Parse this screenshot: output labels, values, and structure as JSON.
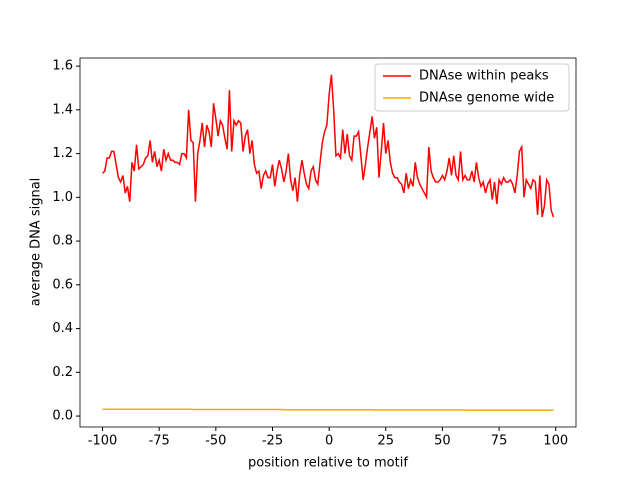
{
  "chart_data": {
    "type": "line",
    "xlabel": "position relative to motif",
    "ylabel": "average DNA signal",
    "x": [
      -100,
      -99,
      -98,
      -97,
      -96,
      -95,
      -94,
      -93,
      -92,
      -91,
      -90,
      -89,
      -88,
      -87,
      -86,
      -85,
      -84,
      -83,
      -82,
      -81,
      -80,
      -79,
      -78,
      -77,
      -76,
      -75,
      -74,
      -73,
      -72,
      -71,
      -70,
      -69,
      -68,
      -67,
      -66,
      -65,
      -64,
      -63,
      -62,
      -61,
      -60,
      -59,
      -58,
      -57,
      -56,
      -55,
      -54,
      -53,
      -52,
      -51,
      -50,
      -49,
      -48,
      -47,
      -46,
      -45,
      -44,
      -43,
      -42,
      -41,
      -40,
      -39,
      -38,
      -37,
      -36,
      -35,
      -34,
      -33,
      -32,
      -31,
      -30,
      -29,
      -28,
      -27,
      -26,
      -25,
      -24,
      -23,
      -22,
      -21,
      -20,
      -19,
      -18,
      -17,
      -16,
      -15,
      -14,
      -13,
      -12,
      -11,
      -10,
      -9,
      -8,
      -7,
      -6,
      -5,
      -4,
      -3,
      -2,
      -1,
      0,
      1,
      2,
      3,
      4,
      5,
      6,
      7,
      8,
      9,
      10,
      11,
      12,
      13,
      14,
      15,
      16,
      17,
      18,
      19,
      20,
      21,
      22,
      23,
      24,
      25,
      26,
      27,
      28,
      29,
      30,
      31,
      32,
      33,
      34,
      35,
      36,
      37,
      38,
      39,
      40,
      41,
      42,
      43,
      44,
      45,
      46,
      47,
      48,
      49,
      50,
      51,
      52,
      53,
      54,
      55,
      56,
      57,
      58,
      59,
      60,
      61,
      62,
      63,
      64,
      65,
      66,
      67,
      68,
      69,
      70,
      71,
      72,
      73,
      74,
      75,
      76,
      77,
      78,
      79,
      80,
      81,
      82,
      83,
      84,
      85,
      86,
      87,
      88,
      89,
      90,
      91,
      92,
      93,
      94,
      95,
      96,
      97,
      98,
      99
    ],
    "series": [
      {
        "name": "DNAse within peaks",
        "color": "#ff0000",
        "values": [
          1.11,
          1.12,
          1.18,
          1.18,
          1.21,
          1.21,
          1.15,
          1.09,
          1.07,
          1.1,
          1.02,
          1.05,
          0.98,
          1.16,
          1.12,
          1.24,
          1.13,
          1.14,
          1.15,
          1.18,
          1.19,
          1.26,
          1.16,
          1.21,
          1.14,
          1.17,
          1.12,
          1.22,
          1.17,
          1.2,
          1.17,
          1.17,
          1.16,
          1.16,
          1.15,
          1.2,
          1.2,
          1.18,
          1.4,
          1.26,
          1.25,
          0.98,
          1.2,
          1.26,
          1.34,
          1.23,
          1.33,
          1.3,
          1.23,
          1.43,
          1.36,
          1.28,
          1.35,
          1.33,
          1.27,
          1.22,
          1.49,
          1.21,
          1.35,
          1.33,
          1.35,
          1.34,
          1.21,
          1.28,
          1.31,
          1.2,
          1.26,
          1.15,
          1.11,
          1.12,
          1.04,
          1.1,
          1.12,
          1.09,
          1.09,
          1.15,
          1.05,
          1.12,
          1.17,
          1.13,
          1.07,
          1.12,
          1.2,
          1.08,
          1.03,
          1.09,
          0.98,
          1.1,
          1.17,
          1.11,
          1.06,
          1.04,
          1.12,
          1.14,
          1.08,
          1.06,
          1.16,
          1.25,
          1.3,
          1.33,
          1.47,
          1.56,
          1.4,
          1.19,
          1.2,
          1.18,
          1.31,
          1.2,
          1.29,
          1.19,
          1.17,
          1.28,
          1.28,
          1.3,
          1.19,
          1.08,
          1.15,
          1.23,
          1.3,
          1.37,
          1.27,
          1.32,
          1.09,
          1.21,
          1.34,
          1.2,
          1.26,
          1.16,
          1.11,
          1.09,
          1.09,
          1.07,
          1.06,
          1.02,
          1.11,
          1.04,
          1.08,
          1.05,
          1.16,
          1.09,
          1.06,
          1.04,
          1.02,
          1.0,
          1.23,
          1.12,
          1.09,
          1.07,
          1.07,
          1.08,
          1.1,
          1.08,
          1.12,
          1.18,
          1.1,
          1.19,
          1.1,
          1.08,
          1.21,
          1.08,
          1.1,
          1.08,
          1.08,
          1.12,
          1.07,
          1.16,
          1.09,
          1.05,
          1.07,
          1.02,
          1.06,
          1.08,
          0.99,
          1.07,
          0.97,
          1.08,
          1.06,
          1.09,
          1.07,
          1.07,
          1.08,
          1.06,
          1.02,
          1.1,
          1.21,
          1.23,
          1.0,
          1.08,
          1.06,
          1.04,
          1.08,
          1.07,
          0.92,
          1.1,
          0.91,
          0.96,
          1.08,
          1.06,
          0.94,
          0.91
        ]
      },
      {
        "name": "DNAse genome wide",
        "color": "#ffa500",
        "values": [
          0.031,
          0.031,
          0.031,
          0.031,
          0.031,
          0.031,
          0.031,
          0.031,
          0.031,
          0.031,
          0.031,
          0.031,
          0.031,
          0.031,
          0.031,
          0.031,
          0.031,
          0.031,
          0.031,
          0.031,
          0.031,
          0.031,
          0.031,
          0.031,
          0.031,
          0.031,
          0.031,
          0.031,
          0.031,
          0.031,
          0.031,
          0.031,
          0.031,
          0.031,
          0.031,
          0.031,
          0.031,
          0.031,
          0.031,
          0.031,
          0.03,
          0.03,
          0.03,
          0.03,
          0.03,
          0.03,
          0.03,
          0.03,
          0.03,
          0.03,
          0.03,
          0.03,
          0.03,
          0.03,
          0.03,
          0.03,
          0.03,
          0.03,
          0.03,
          0.03,
          0.03,
          0.03,
          0.03,
          0.03,
          0.03,
          0.03,
          0.03,
          0.03,
          0.03,
          0.03,
          0.03,
          0.03,
          0.03,
          0.03,
          0.03,
          0.03,
          0.03,
          0.03,
          0.03,
          0.03,
          0.029,
          0.029,
          0.029,
          0.029,
          0.029,
          0.029,
          0.029,
          0.029,
          0.029,
          0.029,
          0.029,
          0.029,
          0.029,
          0.029,
          0.029,
          0.029,
          0.029,
          0.029,
          0.029,
          0.029,
          0.029,
          0.029,
          0.029,
          0.029,
          0.029,
          0.029,
          0.029,
          0.029,
          0.029,
          0.029,
          0.029,
          0.029,
          0.029,
          0.029,
          0.029,
          0.029,
          0.029,
          0.029,
          0.029,
          0.029,
          0.028,
          0.028,
          0.028,
          0.028,
          0.028,
          0.028,
          0.028,
          0.028,
          0.028,
          0.028,
          0.028,
          0.028,
          0.028,
          0.028,
          0.028,
          0.028,
          0.028,
          0.028,
          0.028,
          0.028,
          0.028,
          0.028,
          0.028,
          0.028,
          0.028,
          0.028,
          0.028,
          0.028,
          0.028,
          0.028,
          0.028,
          0.028,
          0.028,
          0.028,
          0.028,
          0.028,
          0.028,
          0.028,
          0.028,
          0.028,
          0.027,
          0.027,
          0.027,
          0.027,
          0.027,
          0.027,
          0.027,
          0.027,
          0.027,
          0.027,
          0.027,
          0.027,
          0.027,
          0.027,
          0.027,
          0.027,
          0.027,
          0.027,
          0.027,
          0.027,
          0.027,
          0.027,
          0.027,
          0.027,
          0.027,
          0.027,
          0.027,
          0.027,
          0.027,
          0.027,
          0.027,
          0.027,
          0.027,
          0.027,
          0.027,
          0.027,
          0.027,
          0.027,
          0.027,
          0.027
        ]
      }
    ],
    "xlim": [
      -109.95,
      108.95
    ],
    "xticks": [
      -100,
      -75,
      -50,
      -25,
      0,
      25,
      50,
      75,
      100
    ],
    "ylim": [
      -0.05,
      1.637
    ],
    "yticks": [
      {
        "value": 0,
        "label": "0.0"
      },
      0.2,
      0.4,
      0.6,
      0.8,
      {
        "value": 1,
        "label": "1.0"
      },
      1.2,
      1.4,
      1.6
    ],
    "legend": "upper right"
  }
}
